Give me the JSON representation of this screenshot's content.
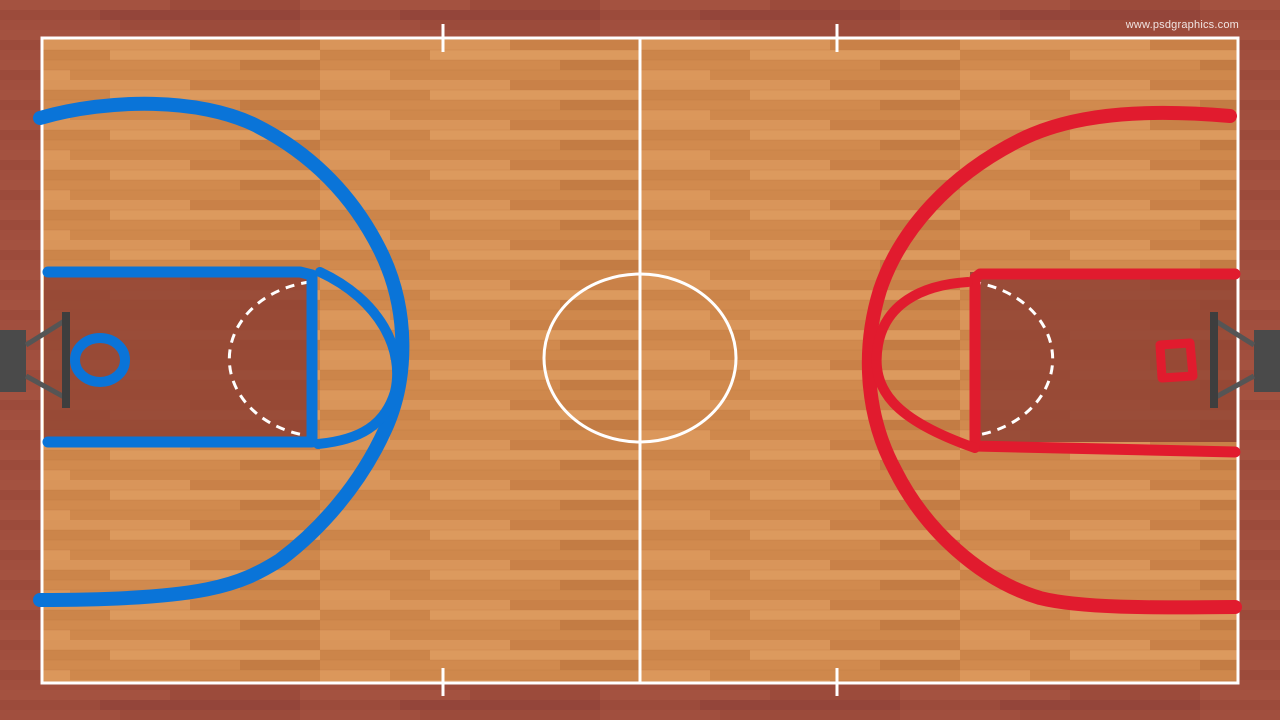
{
  "image": {
    "subject": "basketball-court",
    "watermark": "www.psdgraphics.com"
  },
  "colors": {
    "outer_floor": "#9c4b3b",
    "court_wood": "#d38b4f",
    "court_lines": "#ffffff",
    "paint_area": "#8e3f33",
    "left_team_drawing": "#0a74d8",
    "right_team_drawing": "#e11b2e",
    "backboard": "#4a4a4a"
  }
}
